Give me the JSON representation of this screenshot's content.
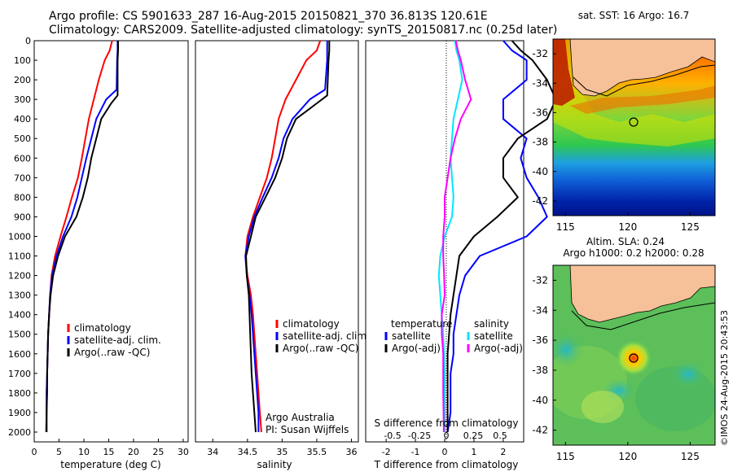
{
  "header": {
    "line1": "Argo profile: CS 5901633_287 16-Aug-2015 20150821_370 36.813S 120.61E",
    "line2": "Climatology: CARS2009. Satellite-adjusted climatology: synTS_20150817.nc (0.25d later)"
  },
  "colors": {
    "climatology": "#ff0000",
    "satellite": "#0000ff",
    "argo": "#000000",
    "satellite_salinity": "#00e5ff",
    "argo_salinity": "#ff00ff",
    "land": "#f6c199"
  },
  "chart_data": [
    {
      "type": "line",
      "id": "temperature",
      "xlabel": "temperature (deg C)",
      "ylabel": "",
      "xlim": [
        0,
        31
      ],
      "ylim": [
        2050,
        0
      ],
      "xticks": [
        0,
        5,
        10,
        15,
        20,
        25,
        30
      ],
      "yticks": [
        0,
        100,
        200,
        300,
        400,
        500,
        600,
        700,
        800,
        900,
        1000,
        1100,
        1200,
        1300,
        1400,
        1500,
        1600,
        1700,
        1800,
        1900,
        2000
      ],
      "legend": [
        "climatology",
        "satellite-adj. clim.",
        "Argo(..raw -QC)"
      ],
      "series": [
        {
          "name": "climatology",
          "color": "#ff0000",
          "x": [
            15.7,
            15.2,
            14.2,
            13.0,
            12.0,
            11.0,
            10.3,
            9.6,
            8.8,
            7.6,
            6.5,
            5.3,
            4.2,
            3.5,
            3.2,
            3.0,
            2.8,
            2.7,
            2.6,
            2.5,
            2.5,
            2.4
          ],
          "y": [
            0,
            50,
            100,
            200,
            300,
            400,
            500,
            600,
            700,
            800,
            900,
            1000,
            1100,
            1200,
            1300,
            1400,
            1500,
            1600,
            1700,
            1800,
            1900,
            2000
          ]
        },
        {
          "name": "satellite-adj. clim.",
          "color": "#0000ff",
          "x": [
            16.8,
            16.8,
            16.7,
            16.6,
            14.5,
            12.5,
            11.5,
            10.5,
            9.6,
            8.7,
            7.5,
            5.8,
            4.5,
            3.6,
            3.2,
            3.0,
            2.8,
            2.7,
            2.6,
            2.5,
            2.5,
            2.5
          ],
          "y": [
            0,
            50,
            100,
            250,
            300,
            400,
            500,
            600,
            700,
            800,
            900,
            1000,
            1100,
            1200,
            1300,
            1400,
            1500,
            1600,
            1700,
            1800,
            1900,
            2000
          ]
        },
        {
          "name": "Argo(..raw -QC)",
          "color": "#000000",
          "x": [
            16.9,
            16.9,
            16.8,
            16.8,
            15.5,
            13.5,
            12.5,
            11.5,
            10.8,
            9.8,
            8.5,
            6.2,
            4.8,
            3.8,
            3.3,
            3.0,
            2.8,
            2.7,
            2.6,
            2.6,
            2.5,
            2.5
          ],
          "y": [
            0,
            50,
            100,
            280,
            320,
            400,
            500,
            600,
            700,
            800,
            900,
            1000,
            1100,
            1200,
            1300,
            1400,
            1500,
            1600,
            1700,
            1800,
            1900,
            2000
          ]
        }
      ]
    },
    {
      "type": "line",
      "id": "salinity",
      "xlabel": "salinity",
      "xlim": [
        33.75,
        36.1
      ],
      "ylim": [
        2050,
        0
      ],
      "xticks": [
        34,
        34.5,
        35,
        35.5,
        36
      ],
      "xticklabels": [
        "34",
        "34.5",
        "35",
        "35.5",
        "36"
      ],
      "legend": [
        "climatology",
        "satellite-adj. clim.",
        "Argo(..raw -QC)"
      ],
      "annotations": [
        "Argo Australia",
        "PI: Susan Wijffels"
      ],
      "series": [
        {
          "name": "climatology",
          "color": "#ff0000",
          "x": [
            35.55,
            35.5,
            35.35,
            35.2,
            35.05,
            34.95,
            34.9,
            34.85,
            34.78,
            34.68,
            34.58,
            34.5,
            34.47,
            34.5,
            34.55,
            34.58,
            34.6,
            34.62,
            34.64,
            34.66,
            34.68,
            34.7
          ],
          "y": [
            0,
            50,
            100,
            200,
            300,
            400,
            500,
            600,
            700,
            800,
            900,
            1000,
            1100,
            1200,
            1300,
            1400,
            1500,
            1600,
            1700,
            1800,
            1900,
            2000
          ]
        },
        {
          "name": "satellite-adj. clim.",
          "color": "#0000ff",
          "x": [
            35.65,
            35.65,
            35.65,
            35.62,
            35.4,
            35.15,
            35.02,
            34.95,
            34.85,
            34.72,
            34.6,
            34.52,
            34.47,
            34.49,
            34.53,
            34.56,
            34.58,
            34.6,
            34.62,
            34.64,
            34.66,
            34.66
          ],
          "y": [
            0,
            50,
            100,
            250,
            300,
            400,
            500,
            600,
            700,
            800,
            900,
            1000,
            1100,
            1200,
            1300,
            1400,
            1500,
            1600,
            1700,
            1800,
            1900,
            2000
          ]
        },
        {
          "name": "Argo(..raw -QC)",
          "color": "#000000",
          "x": [
            35.68,
            35.68,
            35.67,
            35.65,
            35.5,
            35.2,
            35.07,
            35.0,
            34.9,
            34.76,
            34.62,
            34.55,
            34.48,
            34.49,
            34.52,
            34.53,
            34.54,
            34.55,
            34.56,
            34.58,
            34.6,
            34.62
          ],
          "y": [
            0,
            50,
            100,
            280,
            320,
            400,
            500,
            600,
            700,
            800,
            900,
            1000,
            1100,
            1200,
            1300,
            1400,
            1500,
            1600,
            1700,
            1800,
            1900,
            2000
          ]
        }
      ]
    },
    {
      "type": "line",
      "id": "difference",
      "xlabel": "T difference from climatology",
      "x2label": "S difference from climatology",
      "xlim": [
        -2.7,
        2.7
      ],
      "ylim": [
        2050,
        0
      ],
      "xticks": [
        -2,
        -1,
        0,
        1,
        2
      ],
      "x2ticks": [
        -0.5,
        -0.25,
        0,
        0.25,
        0.5
      ],
      "x2ticklabels": [
        "-0.5",
        "-0.25",
        "0",
        "0.25",
        "0.5"
      ],
      "legend_groups": {
        "temperature": [
          "satellite",
          "Argo(-adj)"
        ],
        "salinity": [
          "satellite",
          "Argo(-adj)"
        ]
      },
      "series": [
        {
          "name": "temperature satellite",
          "color": "#0000ff",
          "x": [
            2.0,
            2.3,
            2.8,
            2.8,
            2.0,
            2.0,
            2.8,
            2.6,
            2.8,
            3.2,
            3.5,
            2.8,
            1.2,
            0.7,
            0.5,
            0.4,
            0.3,
            0.3,
            0.2,
            0.2,
            0.2,
            0.1
          ],
          "y": [
            0,
            50,
            100,
            200,
            300,
            400,
            500,
            600,
            700,
            800,
            900,
            1000,
            1100,
            1200,
            1300,
            1400,
            1500,
            1600,
            1700,
            1800,
            1900,
            2000
          ]
        },
        {
          "name": "temperature Argo(-adj)",
          "color": "#000000",
          "x": [
            2.3,
            2.6,
            3.0,
            3.5,
            3.8,
            3.5,
            2.5,
            2.0,
            2.0,
            2.5,
            1.8,
            1.0,
            0.5,
            0.4,
            0.3,
            0.2,
            0.15,
            0.1,
            0.1,
            0.1,
            0.1,
            0.1
          ],
          "y": [
            0,
            50,
            100,
            200,
            300,
            400,
            500,
            600,
            700,
            800,
            900,
            1000,
            1100,
            1200,
            1300,
            1400,
            1500,
            1600,
            1700,
            1800,
            1900,
            2000
          ]
        },
        {
          "name": "salinity satellite",
          "color": "#00e5ff",
          "x": [
            0.35,
            0.4,
            0.5,
            0.6,
            0.45,
            0.3,
            0.25,
            0.2,
            0.25,
            0.3,
            0.25,
            0.0,
            -0.15,
            -0.2,
            -0.15,
            -0.1,
            -0.05,
            -0.02,
            0.0,
            0.0,
            0.0,
            0.0
          ],
          "y": [
            0,
            50,
            100,
            200,
            300,
            400,
            500,
            600,
            700,
            800,
            900,
            1000,
            1100,
            1200,
            1300,
            1400,
            1500,
            1600,
            1700,
            1800,
            1900,
            2000
          ]
        },
        {
          "name": "salinity Argo(-adj)",
          "color": "#ff00ff",
          "x": [
            0.38,
            0.45,
            0.55,
            0.7,
            0.9,
            0.55,
            0.35,
            0.2,
            0.1,
            0.0,
            0.0,
            -0.05,
            -0.05,
            -0.02,
            0.0,
            -0.1,
            -0.1,
            -0.05,
            -0.05,
            -0.05,
            -0.04,
            -0.03
          ],
          "y": [
            0,
            50,
            100,
            200,
            300,
            400,
            500,
            600,
            700,
            800,
            900,
            1000,
            1100,
            1200,
            1300,
            1400,
            1500,
            1600,
            1700,
            1800,
            1900,
            2000
          ]
        }
      ]
    },
    {
      "type": "heatmap",
      "id": "sst-map",
      "title": "sat. SST: 16 Argo: 16.7",
      "xlim": [
        114,
        127
      ],
      "ylim": [
        -43,
        -31
      ],
      "xticks": [
        115,
        120,
        125
      ],
      "yticks": [
        -32,
        -34,
        -36,
        -38,
        -40,
        -42
      ],
      "argo_position": {
        "lon": 120.61,
        "lat": -36.813
      }
    },
    {
      "type": "heatmap",
      "id": "sla-map",
      "title": "Altim. SLA: 0.24",
      "subtitle": "Argo h1000: 0.2 h2000: 0.28",
      "xlim": [
        114,
        127
      ],
      "ylim": [
        -43,
        -31
      ],
      "xticks": [
        115,
        120,
        125
      ],
      "yticks": [
        -32,
        -34,
        -36,
        -38,
        -40,
        -42
      ],
      "argo_position": {
        "lon": 120.61,
        "lat": -36.813
      }
    }
  ],
  "credit": "©IMOS 24-Aug-2015 20:43:53"
}
